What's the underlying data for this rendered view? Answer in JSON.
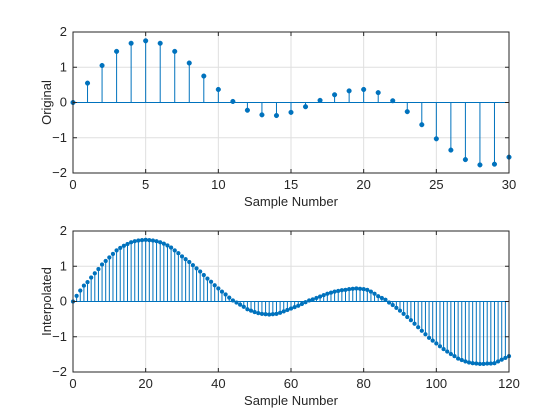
{
  "colors": {
    "series": "#0072bd",
    "grid": "#dfdfdf",
    "axes": "#262626",
    "background": "#ffffff"
  },
  "chart_data": [
    {
      "type": "stem",
      "id": "original",
      "title": "",
      "xlabel": "Sample Number",
      "ylabel": "Original",
      "xlim": [
        0,
        30
      ],
      "ylim": [
        -2,
        2
      ],
      "xticks": [
        0,
        5,
        10,
        15,
        20,
        25,
        30
      ],
      "yticks": [
        -2,
        -1,
        0,
        1,
        2
      ],
      "grid": true,
      "x": [
        0,
        1,
        2,
        3,
        4,
        5,
        6,
        7,
        8,
        9,
        10,
        11,
        12,
        13,
        14,
        15,
        16,
        17,
        18,
        19,
        20,
        21,
        22,
        23,
        24,
        25,
        26,
        27,
        28,
        29,
        30
      ],
      "y": [
        0,
        0.55,
        1.05,
        1.45,
        1.68,
        1.75,
        1.68,
        1.45,
        1.12,
        0.75,
        0.37,
        0.03,
        -0.22,
        -0.35,
        -0.37,
        -0.28,
        -0.12,
        0.06,
        0.22,
        0.33,
        0.37,
        0.28,
        0.05,
        -0.26,
        -0.63,
        -1.03,
        -1.35,
        -1.62,
        -1.77,
        -1.75,
        -1.55
      ]
    },
    {
      "type": "stem",
      "id": "interpolated",
      "title": "",
      "xlabel": "Sample Number",
      "ylabel": "Interpolated",
      "xlim": [
        0,
        120
      ],
      "ylim": [
        -2,
        2
      ],
      "xticks": [
        0,
        20,
        40,
        60,
        80,
        100,
        120
      ],
      "yticks": [
        -2,
        -1,
        0,
        1,
        2
      ],
      "grid": true,
      "x_start": 0,
      "x_step": 1,
      "y": [
        0,
        0.16,
        0.31,
        0.45,
        0.55,
        0.68,
        0.8,
        0.92,
        1.05,
        1.15,
        1.25,
        1.35,
        1.45,
        1.52,
        1.58,
        1.63,
        1.68,
        1.71,
        1.73,
        1.74,
        1.75,
        1.74,
        1.73,
        1.71,
        1.68,
        1.64,
        1.59,
        1.53,
        1.45,
        1.37,
        1.28,
        1.2,
        1.12,
        1.03,
        0.94,
        0.85,
        0.75,
        0.65,
        0.56,
        0.46,
        0.37,
        0.28,
        0.2,
        0.11,
        0.03,
        -0.03,
        -0.09,
        -0.15,
        -0.22,
        -0.26,
        -0.3,
        -0.33,
        -0.35,
        -0.36,
        -0.37,
        -0.36,
        -0.35,
        -0.32,
        -0.28,
        -0.24,
        -0.2,
        -0.16,
        -0.12,
        -0.07,
        -0.02,
        0.03,
        0.06,
        0.1,
        0.14,
        0.18,
        0.22,
        0.25,
        0.28,
        0.3,
        0.32,
        0.33,
        0.35,
        0.36,
        0.37,
        0.36,
        0.35,
        0.33,
        0.28,
        0.22,
        0.15,
        0.1,
        0.05,
        -0.03,
        -0.1,
        -0.18,
        -0.26,
        -0.35,
        -0.44,
        -0.53,
        -0.63,
        -0.73,
        -0.83,
        -0.93,
        -1.03,
        -1.11,
        -1.19,
        -1.27,
        -1.35,
        -1.42,
        -1.49,
        -1.55,
        -1.62,
        -1.66,
        -1.7,
        -1.73,
        -1.75,
        -1.76,
        -1.77,
        -1.77,
        -1.76,
        -1.76,
        -1.75,
        -1.7,
        -1.65,
        -1.6,
        -1.55
      ]
    }
  ]
}
